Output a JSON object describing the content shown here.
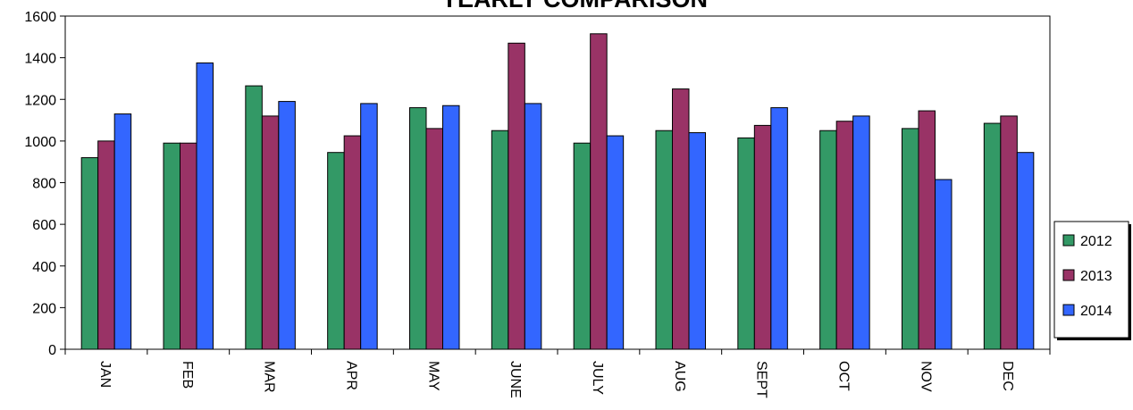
{
  "chart_data": {
    "type": "bar",
    "title": "YEARLY COMPARISON",
    "xlabel": "",
    "ylabel": "",
    "categories": [
      "JAN",
      "FEB",
      "MAR",
      "APR",
      "MAY",
      "JUNE",
      "JULY",
      "AUG",
      "SEPT",
      "OCT",
      "NOV",
      "DEC"
    ],
    "ylim": [
      0,
      1600
    ],
    "yticks": [
      "0",
      "200",
      "400",
      "600",
      "800",
      "1000",
      "1200",
      "1400",
      "1600"
    ],
    "grid": false,
    "legend_position": "right",
    "series": [
      {
        "name": "2012",
        "color": "#339966",
        "values": [
          920,
          990,
          1265,
          945,
          1160,
          1050,
          990,
          1050,
          1015,
          1050,
          1060,
          1085
        ]
      },
      {
        "name": "2013",
        "color": "#993366",
        "values": [
          1000,
          990,
          1120,
          1025,
          1060,
          1470,
          1515,
          1250,
          1075,
          1095,
          1145,
          1120
        ]
      },
      {
        "name": "2014",
        "color": "#3366FF",
        "values": [
          1130,
          1375,
          1190,
          1180,
          1170,
          1180,
          1025,
          1040,
          1160,
          1120,
          815,
          945
        ]
      }
    ]
  }
}
